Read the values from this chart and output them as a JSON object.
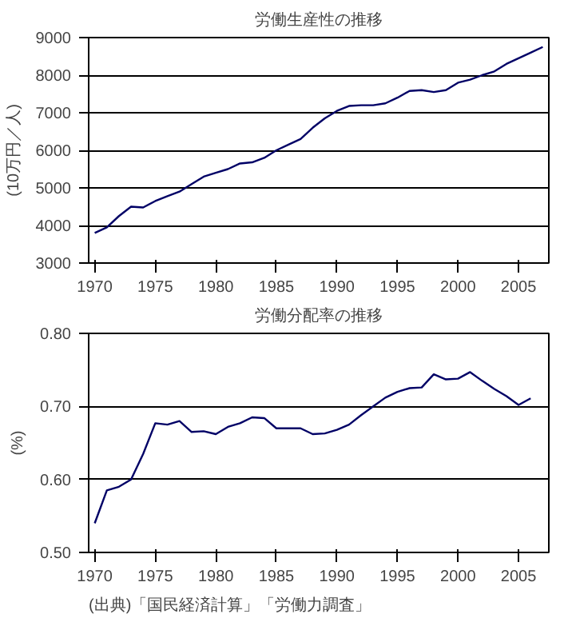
{
  "chart_data": [
    {
      "type": "line",
      "title": "労働生産性の推移",
      "ylabel": "(10万円／人)",
      "x": [
        1970,
        1971,
        1972,
        1973,
        1974,
        1975,
        1976,
        1977,
        1978,
        1979,
        1980,
        1981,
        1982,
        1983,
        1984,
        1985,
        1986,
        1987,
        1988,
        1989,
        1990,
        1991,
        1992,
        1993,
        1994,
        1995,
        1996,
        1997,
        1998,
        1999,
        2000,
        2001,
        2002,
        2003,
        2004,
        2005,
        2006,
        2007
      ],
      "series": [
        {
          "color": "#000066",
          "values": [
            3800,
            3950,
            4250,
            4500,
            4480,
            4650,
            4780,
            4900,
            5100,
            5300,
            5400,
            5500,
            5650,
            5680,
            5800,
            6000,
            6150,
            6300,
            6600,
            6850,
            7050,
            7180,
            7200,
            7200,
            7250,
            7400,
            7580,
            7600,
            7550,
            7600,
            7800,
            7880,
            8000,
            8100,
            8300,
            8450,
            8600,
            8750
          ]
        }
      ],
      "xlim": [
        1969.5,
        2007.5
      ],
      "xticks": [
        1970,
        1975,
        1980,
        1985,
        1990,
        1995,
        2000,
        2005
      ],
      "ylim": [
        3000,
        9000
      ],
      "yticks": [
        3000,
        4000,
        5000,
        6000,
        7000,
        8000,
        9000
      ],
      "grid": "y",
      "marker": "none",
      "line_style": "solid"
    },
    {
      "type": "line",
      "title": "労働分配率の推移",
      "ylabel": "(%)",
      "annotations": [
        "(出典)「国民経済計算」「労働力調査」"
      ],
      "x": [
        1970,
        1971,
        1972,
        1973,
        1974,
        1975,
        1976,
        1977,
        1978,
        1979,
        1980,
        1981,
        1982,
        1983,
        1984,
        1985,
        1986,
        1987,
        1988,
        1989,
        1990,
        1991,
        1992,
        1993,
        1994,
        1995,
        1996,
        1997,
        1998,
        1999,
        2000,
        2001,
        2002,
        2003,
        2004,
        2005,
        2006
      ],
      "series": [
        {
          "color": "#000066",
          "values": [
            0.54,
            0.585,
            0.59,
            0.6,
            0.635,
            0.677,
            0.675,
            0.68,
            0.665,
            0.666,
            0.662,
            0.672,
            0.677,
            0.685,
            0.684,
            0.67,
            0.67,
            0.67,
            0.662,
            0.663,
            0.668,
            0.675,
            0.688,
            0.7,
            0.712,
            0.72,
            0.725,
            0.726,
            0.744,
            0.737,
            0.738,
            0.747,
            0.735,
            0.724,
            0.714,
            0.702,
            0.711
          ]
        }
      ],
      "xlim": [
        1969.5,
        2007.5
      ],
      "xticks": [
        1970,
        1975,
        1980,
        1985,
        1990,
        1995,
        2000,
        2005
      ],
      "ylim": [
        0.5,
        0.8
      ],
      "yticks": [
        {
          "value": 0.5,
          "label": "0.50"
        },
        {
          "value": 0.6,
          "label": "0.60"
        },
        {
          "value": 0.7,
          "label": "0.70"
        },
        {
          "value": 0.8,
          "label": "0.80"
        }
      ],
      "grid": "y",
      "marker": "none",
      "line_style": "solid"
    }
  ]
}
